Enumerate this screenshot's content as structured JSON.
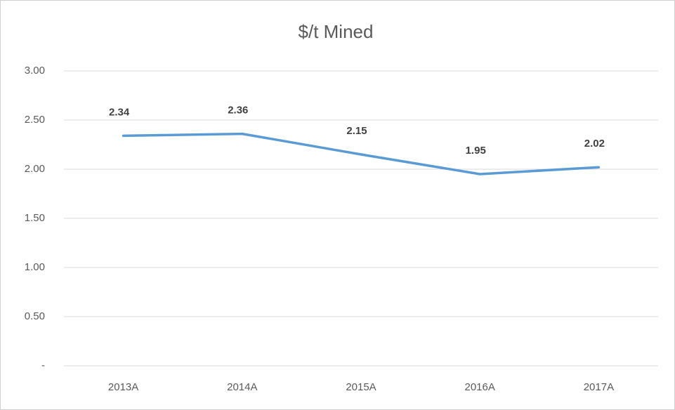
{
  "chart_data": {
    "type": "line",
    "title": "$/t Mined",
    "categories": [
      "2013A",
      "2014A",
      "2015A",
      "2016A",
      "2017A"
    ],
    "series": [
      {
        "name": "$/t Mined",
        "color": "#5b9bd5",
        "values": [
          2.34,
          2.36,
          2.15,
          1.95,
          2.02
        ]
      }
    ],
    "ylim": [
      0,
      3
    ],
    "yticks": [
      {
        "value": 0,
        "label": "-"
      },
      {
        "value": 0.5,
        "label": "0.50"
      },
      {
        "value": 1,
        "label": "1.00"
      },
      {
        "value": 1.5,
        "label": "1.50"
      },
      {
        "value": 2,
        "label": "2.00"
      },
      {
        "value": 2.5,
        "label": "2.50"
      },
      {
        "value": 3,
        "label": "3.00"
      }
    ],
    "grid": true
  }
}
